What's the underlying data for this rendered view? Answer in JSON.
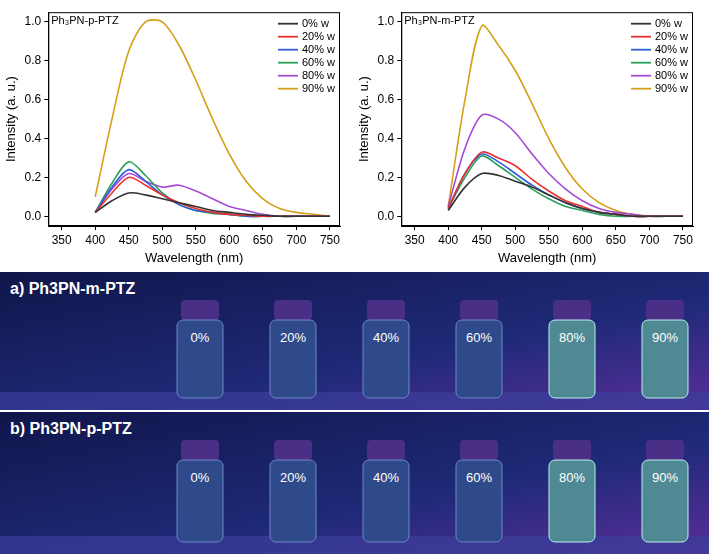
{
  "chart_data": [
    {
      "type": "line",
      "title": "Ph₃PN-p-PTZ",
      "x_label": "Wavelength (nm)",
      "y_label": "Intensity (a. u.)",
      "x": [
        400,
        425,
        450,
        475,
        500,
        525,
        550,
        575,
        600,
        625,
        650,
        675,
        700,
        725,
        750
      ],
      "series": [
        {
          "name": "0% w",
          "color": "#333333",
          "values": [
            0.02,
            0.08,
            0.12,
            0.11,
            0.09,
            0.07,
            0.05,
            0.03,
            0.02,
            0.01,
            0.005,
            0,
            0,
            0,
            0
          ]
        },
        {
          "name": "20% w",
          "color": "#e8312f",
          "values": [
            0.02,
            0.12,
            0.2,
            0.16,
            0.11,
            0.07,
            0.04,
            0.02,
            0.01,
            0.005,
            0,
            0,
            0,
            0,
            0
          ]
        },
        {
          "name": "40% w",
          "color": "#2e5ed8",
          "values": [
            0.02,
            0.15,
            0.24,
            0.18,
            0.11,
            0.06,
            0.03,
            0.02,
            0.01,
            0,
            0,
            0,
            0,
            0,
            0
          ]
        },
        {
          "name": "60% w",
          "color": "#2aa05a",
          "values": [
            0.02,
            0.17,
            0.28,
            0.21,
            0.12,
            0.06,
            0.03,
            0.015,
            0.01,
            0,
            0,
            0,
            0,
            0,
            0
          ]
        },
        {
          "name": "80% w",
          "color": "#a64bd6",
          "values": [
            0.02,
            0.14,
            0.22,
            0.18,
            0.15,
            0.16,
            0.13,
            0.09,
            0.05,
            0.03,
            0.01,
            0,
            0,
            0,
            0
          ]
        },
        {
          "name": "90% w",
          "color": "#d4a017",
          "values": [
            0.1,
            0.5,
            0.85,
            1.0,
            1.0,
            0.88,
            0.7,
            0.5,
            0.32,
            0.18,
            0.09,
            0.04,
            0.02,
            0.01,
            0
          ]
        }
      ],
      "xlim": [
        330,
        765
      ],
      "ylim": [
        -0.05,
        1.05
      ],
      "xticks": [
        350,
        400,
        450,
        500,
        550,
        600,
        650,
        700,
        750
      ],
      "yticks": [
        {
          "value": 0,
          "label": "0.0"
        },
        0.2,
        0.4,
        0.6,
        0.8,
        {
          "value": 1,
          "label": "1.0"
        }
      ],
      "grid": false,
      "legend": "upper right"
    },
    {
      "type": "line",
      "title": "Ph₃PN-m-PTZ",
      "x_label": "Wavelength (nm)",
      "y_label": "Intensity (a. u.)",
      "x": [
        400,
        425,
        450,
        475,
        500,
        525,
        550,
        575,
        600,
        625,
        650,
        675,
        700,
        725,
        750
      ],
      "series": [
        {
          "name": "0% w",
          "color": "#333333",
          "values": [
            0.03,
            0.15,
            0.22,
            0.21,
            0.18,
            0.15,
            0.11,
            0.07,
            0.04,
            0.02,
            0.01,
            0,
            0,
            0,
            0
          ]
        },
        {
          "name": "20% w",
          "color": "#e8312f",
          "values": [
            0.04,
            0.22,
            0.33,
            0.3,
            0.26,
            0.19,
            0.13,
            0.08,
            0.05,
            0.02,
            0.01,
            0,
            0,
            0,
            0
          ]
        },
        {
          "name": "40% w",
          "color": "#2e5ed8",
          "values": [
            0.04,
            0.22,
            0.32,
            0.28,
            0.22,
            0.16,
            0.11,
            0.07,
            0.04,
            0.02,
            0.01,
            0,
            0,
            0,
            0
          ]
        },
        {
          "name": "60% w",
          "color": "#2aa05a",
          "values": [
            0.04,
            0.2,
            0.31,
            0.26,
            0.2,
            0.14,
            0.09,
            0.05,
            0.03,
            0.01,
            0,
            0,
            0,
            0,
            0
          ]
        },
        {
          "name": "80% w",
          "color": "#a64bd6",
          "values": [
            0.05,
            0.35,
            0.52,
            0.5,
            0.43,
            0.32,
            0.22,
            0.14,
            0.08,
            0.04,
            0.02,
            0.01,
            0,
            0,
            0
          ]
        },
        {
          "name": "90% w",
          "color": "#d4a017",
          "values": [
            0.05,
            0.6,
            0.98,
            0.88,
            0.75,
            0.58,
            0.4,
            0.25,
            0.14,
            0.07,
            0.03,
            0.01,
            0,
            0,
            0
          ]
        }
      ],
      "xlim": [
        330,
        765
      ],
      "ylim": [
        -0.05,
        1.05
      ],
      "xticks": [
        350,
        400,
        450,
        500,
        550,
        600,
        650,
        700,
        750
      ],
      "yticks": [
        {
          "value": 0,
          "label": "0.0"
        },
        0.2,
        0.4,
        0.6,
        0.8,
        {
          "value": 1,
          "label": "1.0"
        }
      ],
      "grid": false,
      "legend": "upper right"
    }
  ],
  "photo_panels": [
    {
      "label": "a) Ph3PN-m-PTZ",
      "vial_labels": [
        "0%",
        "20%",
        "40%",
        "60%",
        "80%",
        "90%"
      ]
    },
    {
      "label": "b) Ph3PN-p-PTZ",
      "vial_labels": [
        "0%",
        "20%",
        "40%",
        "60%",
        "80%",
        "90%"
      ]
    }
  ]
}
